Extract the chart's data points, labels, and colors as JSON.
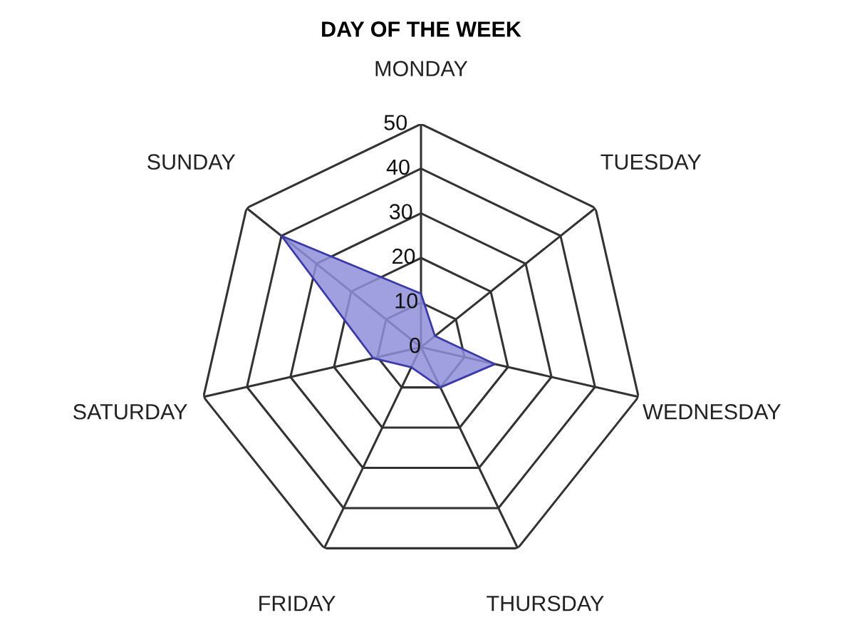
{
  "chart_data": {
    "type": "radar",
    "title": "DAY OF THE WEEK",
    "categories": [
      "MONDAY",
      "TUESDAY",
      "WEDNESDAY",
      "THURSDAY",
      "FRIDAY",
      "SATURDAY",
      "SUNDAY"
    ],
    "series": [
      {
        "color": "#8f8fdc",
        "values": [
          12,
          4,
          17,
          10,
          5,
          11,
          40
        ]
      }
    ],
    "ylim": [
      0,
      50
    ],
    "yticks": [
      0,
      10,
      20,
      30,
      40,
      50
    ],
    "grid": true
  }
}
